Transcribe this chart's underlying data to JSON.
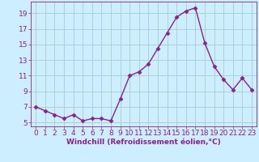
{
  "x": [
    0,
    1,
    2,
    3,
    4,
    5,
    6,
    7,
    8,
    9,
    10,
    11,
    12,
    13,
    14,
    15,
    16,
    17,
    18,
    19,
    20,
    21,
    22,
    23
  ],
  "y": [
    7.0,
    6.5,
    6.0,
    5.5,
    6.0,
    5.2,
    5.5,
    5.5,
    5.2,
    8.0,
    11.0,
    11.5,
    12.5,
    14.5,
    16.5,
    18.5,
    19.3,
    19.7,
    15.2,
    12.2,
    10.5,
    9.2,
    10.7,
    9.2
  ],
  "line_color": "#882288",
  "marker": "D",
  "marker_size": 2.5,
  "bg_color": "#cceeff",
  "grid_color": "#aacccc",
  "xlabel": "Windchill (Refroidissement éolien,°C)",
  "xlim": [
    -0.5,
    23.5
  ],
  "ylim": [
    4.5,
    20.5
  ],
  "yticks": [
    5,
    7,
    9,
    11,
    13,
    15,
    17,
    19
  ],
  "xticks": [
    0,
    1,
    2,
    3,
    4,
    5,
    6,
    7,
    8,
    9,
    10,
    11,
    12,
    13,
    14,
    15,
    16,
    17,
    18,
    19,
    20,
    21,
    22,
    23
  ],
  "xlabel_fontsize": 6.5,
  "tick_fontsize": 6.5,
  "linewidth": 1.0
}
